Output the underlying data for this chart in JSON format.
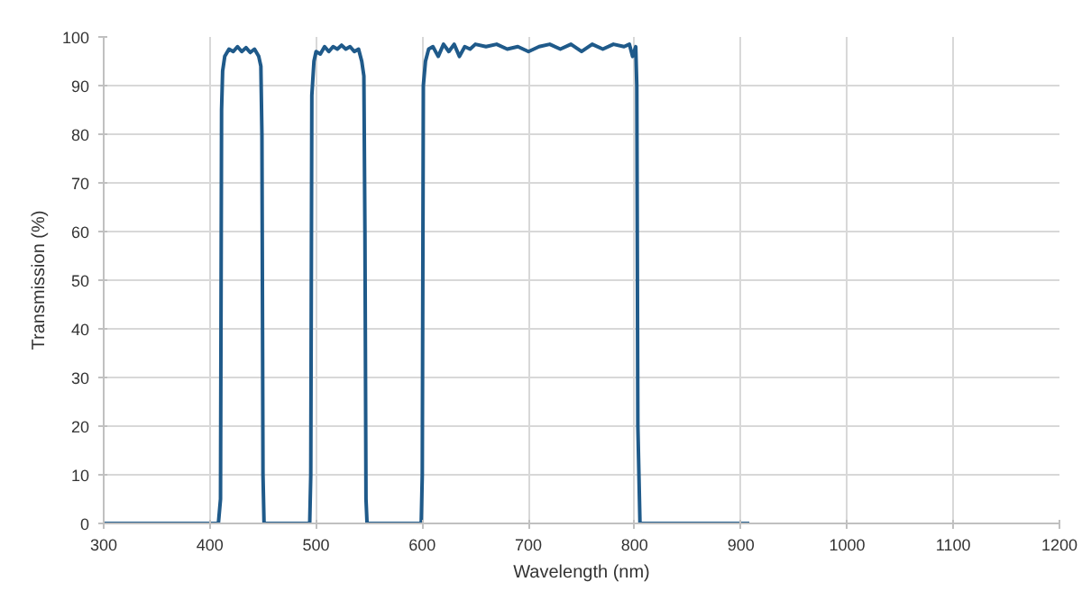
{
  "chart_data": {
    "type": "line",
    "xlabel": "Wavelength (nm)",
    "ylabel": "Transmission (%)",
    "xlim": [
      300,
      1200
    ],
    "xticks": [
      300,
      400,
      500,
      600,
      700,
      800,
      900,
      1000,
      1100,
      1200
    ],
    "ylim": [
      0,
      100
    ],
    "yticks": [
      0,
      10,
      20,
      30,
      40,
      50,
      60,
      70,
      80,
      90,
      100
    ],
    "grid": true,
    "marker": "none",
    "line_style": "solid",
    "series": [
      {
        "color": "#1f5a8a",
        "x": [
          300,
          408,
          410,
          411,
          412,
          414,
          418,
          422,
          426,
          430,
          434,
          438,
          442,
          446,
          448,
          449,
          450,
          451,
          494,
          495,
          496,
          498,
          500,
          504,
          508,
          512,
          516,
          520,
          524,
          528,
          532,
          536,
          540,
          543,
          545,
          546,
          547,
          548,
          599,
          600,
          601,
          603,
          606,
          610,
          615,
          620,
          625,
          630,
          635,
          640,
          645,
          650,
          660,
          670,
          680,
          690,
          700,
          710,
          720,
          730,
          740,
          750,
          760,
          770,
          780,
          790,
          795,
          798,
          801,
          802,
          803,
          805,
          908
        ],
        "values": [
          0,
          0,
          5,
          85,
          93,
          96,
          97.5,
          97,
          98,
          97,
          97.8,
          96.8,
          97.5,
          96,
          94,
          80,
          10,
          0,
          0,
          10,
          88,
          95,
          97,
          96.5,
          98,
          97,
          98,
          97.5,
          98.3,
          97.5,
          98,
          97,
          97.5,
          95,
          92,
          60,
          5,
          0,
          0,
          10,
          90,
          95,
          97.5,
          98,
          96,
          98.5,
          97,
          98.5,
          96,
          98,
          97.5,
          98.5,
          98,
          98.5,
          97.5,
          98,
          97,
          98,
          98.5,
          97.5,
          98.5,
          97,
          98.5,
          97.5,
          98.5,
          98,
          98.5,
          96,
          98,
          90,
          20,
          0,
          0
        ]
      }
    ]
  }
}
